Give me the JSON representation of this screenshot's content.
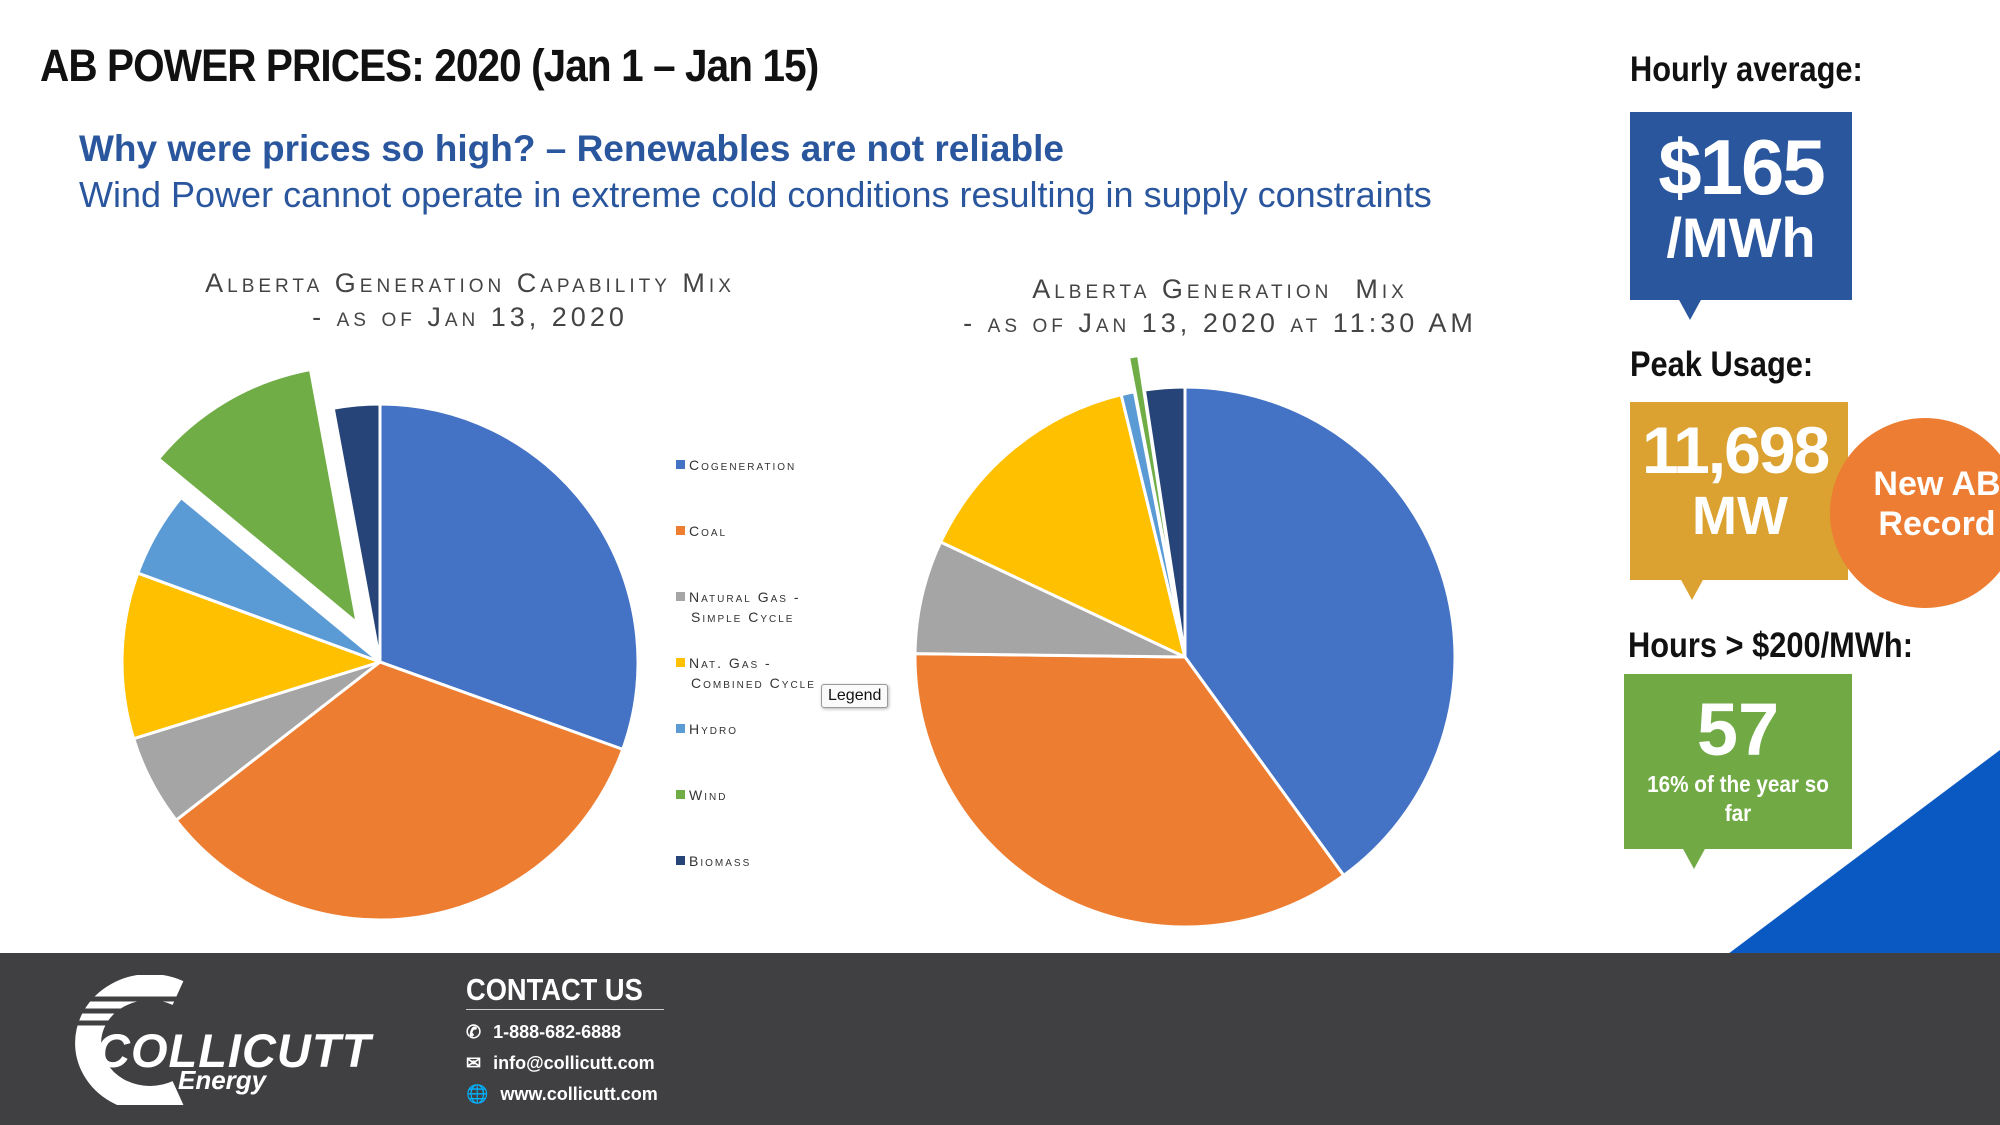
{
  "header": {
    "title": "AB POWER PRICES: 2020 (Jan 1 – Jan 15)",
    "subtitle_bold": "Why were prices so high? – Renewables are not reliable",
    "subtitle": "Wind Power cannot operate in extreme cold conditions resulting in supply constraints"
  },
  "chart_data": [
    {
      "type": "pie",
      "title_line1": "Alberta Generation Capability Mix",
      "title_line2": "- as of Jan 13, 2020",
      "categories": [
        "Cogeneration",
        "Coal",
        "Natural Gas - Simple Cycle",
        "Nat. Gas - Combined Cycle",
        "Hydro",
        "Wind",
        "Biomass"
      ],
      "values": [
        30.5,
        34.0,
        5.7,
        10.4,
        5.4,
        11.1,
        2.9
      ],
      "exploded": [
        "Wind"
      ],
      "legend_position": "right"
    },
    {
      "type": "pie",
      "title_line1": "Alberta Generation  Mix",
      "title_line2": "- as of Jan 13, 2020 at 11:30 AM",
      "categories": [
        "Cogeneration",
        "Coal",
        "Natural Gas - Simple Cycle",
        "Nat. Gas - Combined Cycle",
        "Hydro",
        "Wind",
        "Biomass"
      ],
      "values": [
        40.0,
        35.2,
        6.8,
        14.2,
        0.8,
        0.6,
        2.4
      ],
      "exploded": [
        "Wind"
      ]
    }
  ],
  "legend": {
    "items": [
      {
        "label": "Cogeneration",
        "color": "#4472c4"
      },
      {
        "label": "Coal",
        "color": "#ed7d31"
      },
      {
        "label": "Natural Gas -",
        "label2": "Simple Cycle",
        "color": "#a5a5a5"
      },
      {
        "label": "Nat. Gas -",
        "label2": "Combined Cycle",
        "color": "#ffc000"
      },
      {
        "label": "Hydro",
        "color": "#5b9bd5"
      },
      {
        "label": "Wind",
        "color": "#70ad47"
      },
      {
        "label": "Biomass",
        "color": "#264478"
      }
    ],
    "tooltip": "Legend"
  },
  "sidebar": {
    "hourly_label": "Hourly average:",
    "hourly_value": "$165",
    "hourly_unit": "/MWh",
    "peak_label": "Peak Usage:",
    "peak_value": "11,698",
    "peak_unit": "MW",
    "record_badge": "New AB Record",
    "hours_label": "Hours > $200/MWh:",
    "hours_value": "57",
    "hours_note": "16% of the year so far"
  },
  "footer": {
    "brand": "COLLICUTT",
    "brand_sub": "Energy",
    "contact_title": "CONTACT US",
    "phone": "1-888-682-6888",
    "email": "info@collicutt.com",
    "website": "www.collicutt.com"
  },
  "colors": {
    "accent_blue": "#2a569e",
    "gold": "#dba232",
    "green": "#71aa45",
    "orange": "#ec7d33",
    "footer_bg": "#404042",
    "corner_blue": "#0a58c2"
  }
}
